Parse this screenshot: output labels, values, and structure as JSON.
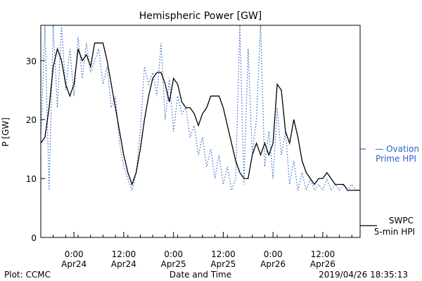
{
  "chart_data": {
    "type": "line",
    "title": "Hemispheric Power [GW]",
    "xlabel": "Date and Time",
    "ylabel": "P [GW]",
    "xlim": [
      "2019-04-23 16:00",
      "2019-04-26 21:00"
    ],
    "ylim": [
      0,
      36
    ],
    "y_ticks": [
      0,
      10,
      20,
      30
    ],
    "x_ticks": [
      {
        "at": "2019-04-24 00:00",
        "line1": "0:00",
        "line2": "Apr24"
      },
      {
        "at": "2019-04-24 12:00",
        "line1": "12:00",
        "line2": "Apr24"
      },
      {
        "at": "2019-04-25 00:00",
        "line1": "0:00",
        "line2": "Apr25"
      },
      {
        "at": "2019-04-25 12:00",
        "line1": "12:00",
        "line2": "Apr25"
      },
      {
        "at": "2019-04-26 00:00",
        "line1": "0:00",
        "line2": "Apr26"
      },
      {
        "at": "2019-04-26 12:00",
        "line1": "12:00",
        "line2": "Apr26"
      }
    ],
    "grid": false,
    "legend": [
      {
        "label": "— Ovation",
        "label2": "Prime HPI",
        "color": "#2a64c8",
        "style": "dotted",
        "series": "ovation"
      },
      {
        "label": "SWPC",
        "label2": "5-min HPI",
        "color": "#000000",
        "style": "solid",
        "series": "swpc"
      }
    ],
    "series": [
      {
        "key": "swpc",
        "color": "#000000",
        "points": [
          [
            "2019-04-23 16:00",
            16
          ],
          [
            "2019-04-23 17:00",
            17
          ],
          [
            "2019-04-23 18:00",
            22
          ],
          [
            "2019-04-23 19:00",
            29
          ],
          [
            "2019-04-23 20:00",
            32
          ],
          [
            "2019-04-23 21:00",
            30
          ],
          [
            "2019-04-23 22:00",
            26
          ],
          [
            "2019-04-23 23:00",
            24
          ],
          [
            "2019-04-24 00:00",
            26
          ],
          [
            "2019-04-24 01:00",
            32
          ],
          [
            "2019-04-24 02:00",
            30
          ],
          [
            "2019-04-24 03:00",
            31
          ],
          [
            "2019-04-24 04:00",
            29
          ],
          [
            "2019-04-24 05:00",
            33
          ],
          [
            "2019-04-24 06:00",
            33
          ],
          [
            "2019-04-24 07:00",
            33
          ],
          [
            "2019-04-24 08:00",
            30
          ],
          [
            "2019-04-24 09:00",
            26
          ],
          [
            "2019-04-24 10:00",
            22
          ],
          [
            "2019-04-24 11:00",
            18
          ],
          [
            "2019-04-24 12:00",
            14
          ],
          [
            "2019-04-24 13:00",
            11
          ],
          [
            "2019-04-24 14:00",
            9
          ],
          [
            "2019-04-24 15:00",
            11
          ],
          [
            "2019-04-24 16:00",
            15
          ],
          [
            "2019-04-24 17:00",
            20
          ],
          [
            "2019-04-24 18:00",
            24
          ],
          [
            "2019-04-24 19:00",
            27
          ],
          [
            "2019-04-24 20:00",
            28
          ],
          [
            "2019-04-24 21:00",
            28
          ],
          [
            "2019-04-24 22:00",
            26
          ],
          [
            "2019-04-24 23:00",
            23
          ],
          [
            "2019-04-25 00:00",
            27
          ],
          [
            "2019-04-25 01:00",
            26
          ],
          [
            "2019-04-25 02:00",
            23
          ],
          [
            "2019-04-25 03:00",
            22
          ],
          [
            "2019-04-25 04:00",
            22
          ],
          [
            "2019-04-25 05:00",
            21
          ],
          [
            "2019-04-25 06:00",
            19
          ],
          [
            "2019-04-25 07:00",
            21
          ],
          [
            "2019-04-25 08:00",
            22
          ],
          [
            "2019-04-25 09:00",
            24
          ],
          [
            "2019-04-25 10:00",
            24
          ],
          [
            "2019-04-25 11:00",
            24
          ],
          [
            "2019-04-25 12:00",
            22
          ],
          [
            "2019-04-25 13:00",
            19
          ],
          [
            "2019-04-25 14:00",
            16
          ],
          [
            "2019-04-25 15:00",
            13
          ],
          [
            "2019-04-25 16:00",
            11
          ],
          [
            "2019-04-25 17:00",
            10
          ],
          [
            "2019-04-25 18:00",
            10
          ],
          [
            "2019-04-25 19:00",
            14
          ],
          [
            "2019-04-25 20:00",
            16
          ],
          [
            "2019-04-25 21:00",
            14
          ],
          [
            "2019-04-25 22:00",
            16
          ],
          [
            "2019-04-25 23:00",
            14
          ],
          [
            "2019-04-26 00:00",
            16
          ],
          [
            "2019-04-26 01:00",
            26
          ],
          [
            "2019-04-26 02:00",
            25
          ],
          [
            "2019-04-26 03:00",
            18
          ],
          [
            "2019-04-26 04:00",
            16
          ],
          [
            "2019-04-26 05:00",
            20
          ],
          [
            "2019-04-26 06:00",
            17
          ],
          [
            "2019-04-26 07:00",
            13
          ],
          [
            "2019-04-26 08:00",
            11
          ],
          [
            "2019-04-26 09:00",
            10
          ],
          [
            "2019-04-26 10:00",
            9
          ],
          [
            "2019-04-26 11:00",
            10
          ],
          [
            "2019-04-26 12:00",
            10
          ],
          [
            "2019-04-26 13:00",
            11
          ],
          [
            "2019-04-26 14:00",
            10
          ],
          [
            "2019-04-26 15:00",
            9
          ],
          [
            "2019-04-26 16:00",
            9
          ],
          [
            "2019-04-26 17:00",
            9
          ],
          [
            "2019-04-26 18:00",
            8
          ],
          [
            "2019-04-26 19:00",
            8
          ],
          [
            "2019-04-26 20:00",
            8
          ],
          [
            "2019-04-26 21:00",
            8
          ]
        ]
      },
      {
        "key": "ovation",
        "color": "#2a64c8",
        "points": [
          [
            "2019-04-23 16:00",
            16
          ],
          [
            "2019-04-23 17:00",
            36
          ],
          [
            "2019-04-23 18:00",
            8
          ],
          [
            "2019-04-23 19:00",
            36
          ],
          [
            "2019-04-23 20:00",
            22
          ],
          [
            "2019-04-23 21:00",
            36
          ],
          [
            "2019-04-23 22:00",
            25
          ],
          [
            "2019-04-23 23:00",
            32
          ],
          [
            "2019-04-24 00:00",
            24
          ],
          [
            "2019-04-24 01:00",
            34
          ],
          [
            "2019-04-24 02:00",
            27
          ],
          [
            "2019-04-24 03:00",
            33
          ],
          [
            "2019-04-24 04:00",
            28
          ],
          [
            "2019-04-24 05:00",
            30
          ],
          [
            "2019-04-24 06:00",
            32
          ],
          [
            "2019-04-24 07:00",
            26
          ],
          [
            "2019-04-24 08:00",
            29
          ],
          [
            "2019-04-24 09:00",
            22
          ],
          [
            "2019-04-24 10:00",
            24
          ],
          [
            "2019-04-24 11:00",
            16
          ],
          [
            "2019-04-24 12:00",
            12
          ],
          [
            "2019-04-24 13:00",
            10
          ],
          [
            "2019-04-24 14:00",
            8
          ],
          [
            "2019-04-24 15:00",
            11
          ],
          [
            "2019-04-24 16:00",
            18
          ],
          [
            "2019-04-24 17:00",
            29
          ],
          [
            "2019-04-24 18:00",
            26
          ],
          [
            "2019-04-24 19:00",
            28
          ],
          [
            "2019-04-24 20:00",
            24
          ],
          [
            "2019-04-24 21:00",
            33
          ],
          [
            "2019-04-24 22:00",
            20
          ],
          [
            "2019-04-24 23:00",
            27
          ],
          [
            "2019-04-25 00:00",
            18
          ],
          [
            "2019-04-25 01:00",
            24
          ],
          [
            "2019-04-25 02:00",
            21
          ],
          [
            "2019-04-25 03:00",
            22
          ],
          [
            "2019-04-25 04:00",
            17
          ],
          [
            "2019-04-25 05:00",
            19
          ],
          [
            "2019-04-25 06:00",
            14
          ],
          [
            "2019-04-25 07:00",
            17
          ],
          [
            "2019-04-25 08:00",
            12
          ],
          [
            "2019-04-25 09:00",
            15
          ],
          [
            "2019-04-25 10:00",
            10
          ],
          [
            "2019-04-25 11:00",
            14
          ],
          [
            "2019-04-25 12:00",
            9
          ],
          [
            "2019-04-25 13:00",
            12
          ],
          [
            "2019-04-25 14:00",
            8
          ],
          [
            "2019-04-25 15:00",
            10
          ],
          [
            "2019-04-25 16:00",
            36
          ],
          [
            "2019-04-25 17:00",
            9
          ],
          [
            "2019-04-25 18:00",
            32
          ],
          [
            "2019-04-25 19:00",
            14
          ],
          [
            "2019-04-25 20:00",
            20
          ],
          [
            "2019-04-25 21:00",
            36
          ],
          [
            "2019-04-25 22:00",
            12
          ],
          [
            "2019-04-25 23:00",
            18
          ],
          [
            "2019-04-26 00:00",
            10
          ],
          [
            "2019-04-26 01:00",
            22
          ],
          [
            "2019-04-26 02:00",
            14
          ],
          [
            "2019-04-26 03:00",
            18
          ],
          [
            "2019-04-26 04:00",
            9
          ],
          [
            "2019-04-26 05:00",
            13
          ],
          [
            "2019-04-26 06:00",
            8
          ],
          [
            "2019-04-26 07:00",
            11
          ],
          [
            "2019-04-26 08:00",
            8
          ],
          [
            "2019-04-26 09:00",
            10
          ],
          [
            "2019-04-26 10:00",
            8
          ],
          [
            "2019-04-26 11:00",
            9
          ],
          [
            "2019-04-26 12:00",
            8
          ],
          [
            "2019-04-26 13:00",
            10
          ],
          [
            "2019-04-26 14:00",
            8
          ],
          [
            "2019-04-26 15:00",
            9
          ],
          [
            "2019-04-26 16:00",
            8
          ],
          [
            "2019-04-26 17:00",
            9
          ],
          [
            "2019-04-26 18:00",
            8
          ],
          [
            "2019-04-26 19:00",
            9
          ],
          [
            "2019-04-26 20:00",
            8
          ],
          [
            "2019-04-26 21:00",
            8
          ]
        ]
      }
    ]
  },
  "footer": {
    "left": "Plot: CCMC",
    "timestamp": "2019/04/26 18:35:13"
  }
}
